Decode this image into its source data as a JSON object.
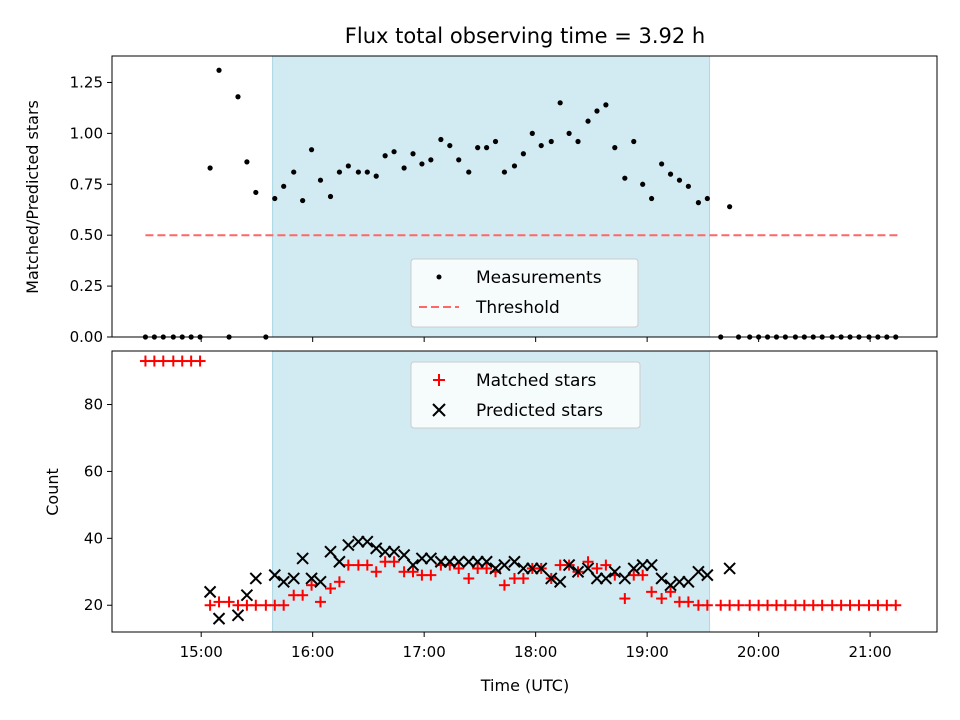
{
  "chart_data": {
    "type": "scatter",
    "title": "Flux total observing time = 3.92 h",
    "colors": {
      "span": "#add8e6",
      "measurements": "#000000",
      "threshold": "#ff6666",
      "matched": "#ff0000",
      "predicted": "#000000"
    },
    "observing_window_hours": [
      15.64,
      19.56
    ],
    "x_ticks": [
      {
        "v": 15,
        "label": "15:00"
      },
      {
        "v": 16,
        "label": "16:00"
      },
      {
        "v": 17,
        "label": "17:00"
      },
      {
        "v": 18,
        "label": "18:00"
      },
      {
        "v": 19,
        "label": "19:00"
      },
      {
        "v": 20,
        "label": "20:00"
      },
      {
        "v": 21,
        "label": "21:00"
      }
    ],
    "top_panel": {
      "ylabel": "Matched/Predicted stars",
      "ylim": [
        0,
        1.38
      ],
      "y_ticks": [
        {
          "v": 0,
          "label": "0.00"
        },
        {
          "v": 0.25,
          "label": "0.25"
        },
        {
          "v": 0.5,
          "label": "0.50"
        },
        {
          "v": 0.75,
          "label": "0.75"
        },
        {
          "v": 1.0,
          "label": "1.00"
        },
        {
          "v": 1.25,
          "label": "1.25"
        }
      ],
      "legend": [
        "Measurements",
        "Threshold"
      ],
      "legend_position": "bottom-center",
      "threshold": {
        "value": 0.5,
        "x_range": [
          14.5,
          21.25
        ]
      },
      "measurements": {
        "x": [
          14.5,
          14.58,
          14.66,
          14.75,
          14.83,
          14.91,
          14.99,
          15.08,
          15.16,
          15.25,
          15.33,
          15.41,
          15.49,
          15.58,
          15.66,
          15.74,
          15.83,
          15.91,
          15.99,
          16.07,
          16.16,
          16.24,
          16.32,
          16.41,
          16.49,
          16.57,
          16.65,
          16.73,
          16.82,
          16.9,
          16.98,
          17.06,
          17.15,
          17.23,
          17.31,
          17.4,
          17.48,
          17.56,
          17.64,
          17.72,
          17.81,
          17.89,
          17.97,
          18.05,
          18.14,
          18.22,
          18.3,
          18.38,
          18.47,
          18.55,
          18.63,
          18.71,
          18.8,
          18.88,
          18.96,
          19.04,
          19.13,
          19.21,
          19.29,
          19.37,
          19.46,
          19.54,
          19.66,
          19.74,
          19.82,
          19.92,
          20.0,
          20.08,
          20.16,
          20.24,
          20.33,
          20.41,
          20.49,
          20.57,
          20.66,
          20.74,
          20.82,
          20.9,
          20.99,
          21.07,
          21.15,
          21.23
        ],
        "y": [
          0,
          0,
          0,
          0,
          0,
          0,
          0,
          0.83,
          1.31,
          0,
          1.18,
          0.86,
          0.71,
          0,
          0.68,
          0.74,
          0.81,
          0.67,
          0.92,
          0.77,
          0.69,
          0.81,
          0.84,
          0.81,
          0.81,
          0.79,
          0.89,
          0.91,
          0.83,
          0.9,
          0.85,
          0.87,
          0.97,
          0.94,
          0.87,
          0.81,
          0.93,
          0.93,
          0.96,
          0.81,
          0.84,
          0.9,
          1.0,
          0.94,
          0.96,
          1.15,
          1.0,
          0.96,
          1.06,
          1.11,
          1.14,
          0.93,
          0.78,
          0.96,
          0.75,
          0.68,
          0.85,
          0.8,
          0.77,
          0.74,
          0.66,
          0.68,
          0,
          0.64,
          0,
          0,
          0,
          0,
          0,
          0,
          0,
          0,
          0,
          0,
          0,
          0,
          0,
          0,
          0,
          0,
          0,
          0
        ]
      }
    },
    "bottom_panel": {
      "xlabel": "Time (UTC)",
      "ylabel": "Count",
      "ylim": [
        12,
        96
      ],
      "y_ticks": [
        {
          "v": 20,
          "label": "20"
        },
        {
          "v": 40,
          "label": "40"
        },
        {
          "v": 60,
          "label": "60"
        },
        {
          "v": 80,
          "label": "80"
        }
      ],
      "legend": [
        "Matched stars",
        "Predicted stars"
      ],
      "legend_position": "top-center",
      "matched": {
        "x": [
          14.5,
          14.58,
          14.66,
          14.75,
          14.83,
          14.91,
          14.99,
          15.08,
          15.16,
          15.25,
          15.33,
          15.41,
          15.49,
          15.58,
          15.66,
          15.74,
          15.83,
          15.91,
          15.99,
          16.07,
          16.16,
          16.24,
          16.32,
          16.41,
          16.49,
          16.57,
          16.65,
          16.73,
          16.82,
          16.9,
          16.98,
          17.06,
          17.15,
          17.23,
          17.31,
          17.4,
          17.48,
          17.56,
          17.64,
          17.72,
          17.81,
          17.89,
          17.97,
          18.05,
          18.14,
          18.22,
          18.3,
          18.38,
          18.47,
          18.55,
          18.63,
          18.71,
          18.8,
          18.88,
          18.96,
          19.04,
          19.13,
          19.21,
          19.29,
          19.37,
          19.46,
          19.54,
          19.66,
          19.74,
          19.82,
          19.92,
          20.0,
          20.08,
          20.16,
          20.24,
          20.33,
          20.41,
          20.49,
          20.57,
          20.66,
          20.74,
          20.82,
          20.9,
          20.99,
          21.07,
          21.15,
          21.23
        ],
        "y": [
          93,
          93,
          93,
          93,
          93,
          93,
          93,
          20,
          21,
          21,
          20,
          20,
          20,
          20,
          20,
          20,
          23,
          23,
          26,
          21,
          25,
          27,
          32,
          32,
          32,
          30,
          33,
          33,
          30,
          30,
          29,
          29,
          32,
          32,
          31,
          28,
          31,
          31,
          30,
          26,
          28,
          28,
          31,
          31,
          28,
          32,
          32,
          30,
          33,
          31,
          32,
          29,
          22,
          29,
          29,
          24,
          22,
          24,
          21,
          21,
          20,
          20,
          20,
          20,
          20,
          20,
          20,
          20,
          20,
          20,
          20,
          20,
          20,
          20,
          20,
          20,
          20,
          20,
          20,
          20,
          20,
          20
        ]
      },
      "predicted": {
        "x": [
          15.08,
          15.16,
          15.33,
          15.41,
          15.49,
          15.66,
          15.74,
          15.83,
          15.91,
          15.99,
          16.07,
          16.16,
          16.24,
          16.32,
          16.41,
          16.49,
          16.57,
          16.65,
          16.73,
          16.82,
          16.9,
          16.98,
          17.06,
          17.15,
          17.23,
          17.31,
          17.4,
          17.48,
          17.56,
          17.64,
          17.72,
          17.81,
          17.89,
          17.97,
          18.05,
          18.14,
          18.22,
          18.3,
          18.38,
          18.47,
          18.55,
          18.63,
          18.71,
          18.8,
          18.88,
          18.96,
          19.04,
          19.13,
          19.21,
          19.29,
          19.37,
          19.46,
          19.54,
          19.74
        ],
        "y": [
          24,
          16,
          17,
          23,
          28,
          29,
          27,
          28,
          34,
          28,
          27,
          36,
          33,
          38,
          39,
          39,
          37,
          36,
          36,
          35,
          32,
          34,
          34,
          33,
          33,
          33,
          33,
          33,
          33,
          31,
          32,
          33,
          31,
          31,
          31,
          28,
          27,
          32,
          30,
          31,
          28,
          28,
          30,
          28,
          31,
          32,
          32,
          28,
          26,
          27,
          27,
          30,
          29,
          31
        ]
      }
    }
  }
}
